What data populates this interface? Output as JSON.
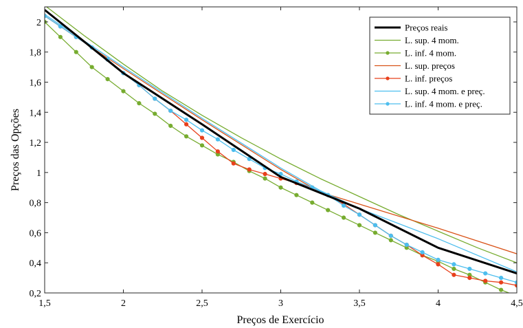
{
  "chart_data": {
    "type": "line",
    "xlabel": "Preços de Exercício",
    "ylabel": "Preços das Opções",
    "xlim": [
      1.5,
      4.5
    ],
    "ylim": [
      0.2,
      2.1
    ],
    "grid": false,
    "legend_position": "top-right",
    "x_ticks": [
      {
        "value": 1.5,
        "label": "1,5"
      },
      {
        "value": 2,
        "label": "2"
      },
      {
        "value": 2.5,
        "label": "2,5"
      },
      {
        "value": 3,
        "label": "3"
      },
      {
        "value": 3.5,
        "label": "3,5"
      },
      {
        "value": 4,
        "label": "4"
      },
      {
        "value": 4.5,
        "label": "4,5"
      }
    ],
    "y_ticks": [
      {
        "value": 0.2,
        "label": "0,2"
      },
      {
        "value": 0.4,
        "label": "0,4"
      },
      {
        "value": 0.6,
        "label": "0,6"
      },
      {
        "value": 0.8,
        "label": "0,8"
      },
      {
        "value": 1,
        "label": "1"
      },
      {
        "value": 1.2,
        "label": "1,2"
      },
      {
        "value": 1.4,
        "label": "1,4"
      },
      {
        "value": 1.6,
        "label": "1,6"
      },
      {
        "value": 1.8,
        "label": "1,8"
      },
      {
        "value": 2,
        "label": "2"
      }
    ],
    "series": [
      {
        "name": "Preços reais",
        "color": "#000000",
        "width": 3,
        "markers": false,
        "x": [
          1.5,
          2,
          2.5,
          3,
          3.5,
          4,
          4.5
        ],
        "y": [
          2.08,
          1.66,
          1.32,
          0.97,
          0.76,
          0.5,
          0.33
        ]
      },
      {
        "name": "L. sup. 4 mom.",
        "color": "#77ac30",
        "width": 1.3,
        "markers": false,
        "x": [
          1.5,
          1.75,
          2,
          2.25,
          2.5,
          2.75,
          3,
          3.25,
          3.5,
          3.75,
          4,
          4.25,
          4.5
        ],
        "y": [
          2.11,
          1.91,
          1.72,
          1.54,
          1.38,
          1.23,
          1.09,
          0.96,
          0.84,
          0.72,
          0.61,
          0.5,
          0.4
        ]
      },
      {
        "name": "L. inf. 4 mom.",
        "color": "#77ac30",
        "width": 1.3,
        "markers": true,
        "x": [
          1.5,
          1.6,
          1.7,
          1.8,
          1.9,
          2,
          2.1,
          2.2,
          2.3,
          2.4,
          2.5,
          2.6,
          2.7,
          2.8,
          2.9,
          3,
          3.1,
          3.2,
          3.3,
          3.4,
          3.5,
          3.6,
          3.7,
          3.8,
          3.9,
          4,
          4.1,
          4.2,
          4.3,
          4.4,
          4.5
        ],
        "y": [
          2.0,
          1.9,
          1.8,
          1.7,
          1.62,
          1.54,
          1.46,
          1.39,
          1.31,
          1.24,
          1.18,
          1.12,
          1.07,
          1.01,
          0.96,
          0.9,
          0.85,
          0.8,
          0.75,
          0.7,
          0.65,
          0.6,
          0.55,
          0.5,
          0.45,
          0.41,
          0.36,
          0.32,
          0.27,
          0.22,
          0.18
        ]
      },
      {
        "name": "L. sup. preços",
        "color": "#d95319",
        "width": 1.3,
        "markers": false,
        "x": [
          1.5,
          2,
          2.5,
          3,
          3.25,
          3.5,
          4,
          4.5
        ],
        "y": [
          2.04,
          1.69,
          1.35,
          1.02,
          0.87,
          0.79,
          0.63,
          0.46
        ]
      },
      {
        "name": "L. inf. preços",
        "color": "#e8401c",
        "width": 1.3,
        "markers": true,
        "x": [
          1.5,
          1.6,
          1.7,
          1.8,
          1.9,
          2,
          2.1,
          2.2,
          2.3,
          2.4,
          2.5,
          2.6,
          2.7,
          2.8,
          2.9,
          3,
          3.1,
          3.2,
          3.3,
          3.4,
          3.5,
          3.6,
          3.7,
          3.8,
          3.9,
          4,
          4.1,
          4.2,
          4.3,
          4.4,
          4.5
        ],
        "y": [
          2.04,
          1.97,
          1.9,
          1.83,
          1.75,
          1.66,
          1.58,
          1.49,
          1.41,
          1.32,
          1.23,
          1.14,
          1.06,
          1.02,
          0.99,
          0.96,
          0.93,
          0.9,
          0.85,
          0.79,
          0.72,
          0.65,
          0.58,
          0.52,
          0.45,
          0.39,
          0.32,
          0.3,
          0.28,
          0.27,
          0.25
        ]
      },
      {
        "name": "L. sup. 4 mom. e preç.",
        "color": "#4dbeee",
        "width": 1.3,
        "markers": false,
        "x": [
          1.5,
          2,
          2.5,
          3,
          3.25,
          3.5,
          4,
          4.5
        ],
        "y": [
          2.05,
          1.7,
          1.36,
          1.03,
          0.88,
          0.76,
          0.56,
          0.34
        ]
      },
      {
        "name": "L. inf. 4 mom. e preç.",
        "color": "#4dbeee",
        "width": 1.3,
        "markers": true,
        "x": [
          1.5,
          1.6,
          1.7,
          1.8,
          1.9,
          2,
          2.1,
          2.2,
          2.3,
          2.4,
          2.5,
          2.6,
          2.7,
          2.8,
          2.9,
          3,
          3.1,
          3.2,
          3.3,
          3.4,
          3.5,
          3.6,
          3.7,
          3.8,
          3.9,
          4,
          4.1,
          4.2,
          4.3,
          4.4,
          4.5
        ],
        "y": [
          2.04,
          1.97,
          1.9,
          1.83,
          1.75,
          1.66,
          1.58,
          1.49,
          1.41,
          1.35,
          1.28,
          1.22,
          1.15,
          1.09,
          1.03,
          0.99,
          0.94,
          0.9,
          0.85,
          0.78,
          0.72,
          0.65,
          0.58,
          0.52,
          0.47,
          0.42,
          0.39,
          0.36,
          0.33,
          0.3,
          0.27
        ]
      }
    ]
  }
}
